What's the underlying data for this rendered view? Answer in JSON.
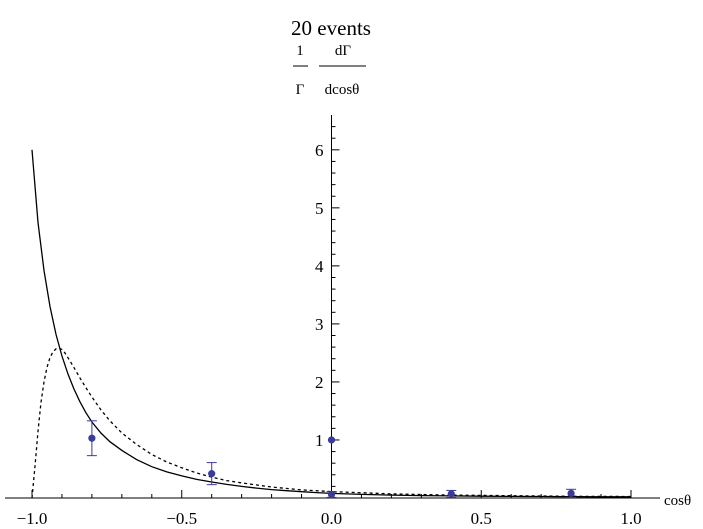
{
  "chart_data": {
    "type": "line",
    "title": "20 events",
    "ylabel": {
      "numerator_left": "1",
      "denominator_left": "Γ",
      "numerator_right": "dΓ",
      "denominator_right": "dcosθ"
    },
    "xlabel": "cosθ",
    "xlim": [
      -1.0,
      1.0
    ],
    "ylim": [
      0,
      6.6
    ],
    "x_ticks": [
      {
        "value": -1.0,
        "label": "−1.0"
      },
      {
        "value": -0.5,
        "label": "−0.5"
      },
      {
        "value": 0.0,
        "label": "0.0"
      },
      {
        "value": 0.5,
        "label": "0.5"
      },
      {
        "value": 1.0,
        "label": "1.0"
      }
    ],
    "y_ticks": [
      {
        "value": 1,
        "label": "1"
      },
      {
        "value": 2,
        "label": "2"
      },
      {
        "value": 3,
        "label": "3"
      },
      {
        "value": 4,
        "label": "4"
      },
      {
        "value": 5,
        "label": "5"
      },
      {
        "value": 6,
        "label": "6"
      }
    ],
    "grid": false,
    "series": [
      {
        "style": "solid",
        "color": "#000000",
        "x": [
          -1.0,
          -0.98,
          -0.96,
          -0.94,
          -0.92,
          -0.9,
          -0.88,
          -0.86,
          -0.84,
          -0.82,
          -0.8,
          -0.77,
          -0.74,
          -0.7,
          -0.65,
          -0.6,
          -0.55,
          -0.5,
          -0.45,
          -0.4,
          -0.35,
          -0.3,
          -0.25,
          -0.2,
          -0.15,
          -0.1,
          -0.05,
          0.0,
          0.1,
          0.2,
          0.3,
          0.4,
          0.5,
          0.6,
          0.7,
          0.8,
          0.9,
          1.0
        ],
        "y": [
          6.0,
          4.75,
          3.92,
          3.3,
          2.82,
          2.45,
          2.14,
          1.88,
          1.66,
          1.47,
          1.31,
          1.12,
          0.97,
          0.82,
          0.66,
          0.54,
          0.45,
          0.38,
          0.32,
          0.275,
          0.235,
          0.2,
          0.17,
          0.145,
          0.125,
          0.108,
          0.093,
          0.08,
          0.062,
          0.05,
          0.042,
          0.036,
          0.031,
          0.028,
          0.025,
          0.023,
          0.021,
          0.02
        ]
      },
      {
        "style": "dotted",
        "color": "#000000",
        "x": [
          -1.0,
          -0.99,
          -0.98,
          -0.97,
          -0.96,
          -0.95,
          -0.94,
          -0.93,
          -0.92,
          -0.91,
          -0.9,
          -0.89,
          -0.88,
          -0.86,
          -0.84,
          -0.82,
          -0.8,
          -0.77,
          -0.74,
          -0.7,
          -0.65,
          -0.6,
          -0.55,
          -0.5,
          -0.45,
          -0.4,
          -0.35,
          -0.3,
          -0.2,
          -0.1,
          0.0,
          0.2,
          0.4,
          0.6,
          0.8,
          1.0
        ],
        "y": [
          0.0,
          0.55,
          1.15,
          1.65,
          2.0,
          2.25,
          2.42,
          2.52,
          2.57,
          2.58,
          2.56,
          2.5,
          2.42,
          2.25,
          2.07,
          1.9,
          1.74,
          1.52,
          1.33,
          1.12,
          0.92,
          0.75,
          0.62,
          0.52,
          0.43,
          0.36,
          0.3,
          0.26,
          0.19,
          0.14,
          0.11,
          0.07,
          0.05,
          0.04,
          0.03,
          0.025
        ]
      }
    ],
    "points": {
      "color": "#3b3b9a",
      "data": [
        {
          "x": -0.8,
          "y": 1.03,
          "err": 0.3
        },
        {
          "x": -0.4,
          "y": 0.42,
          "err": 0.19
        },
        {
          "x": 0.0,
          "y": 0.06,
          "err": 0.05
        },
        {
          "x": 0.4,
          "y": 0.07,
          "err": 0.06
        },
        {
          "x": 0.8,
          "y": 0.08,
          "err": 0.07
        },
        {
          "x": 0.0,
          "y": 1.0,
          "err": 0
        }
      ]
    }
  }
}
